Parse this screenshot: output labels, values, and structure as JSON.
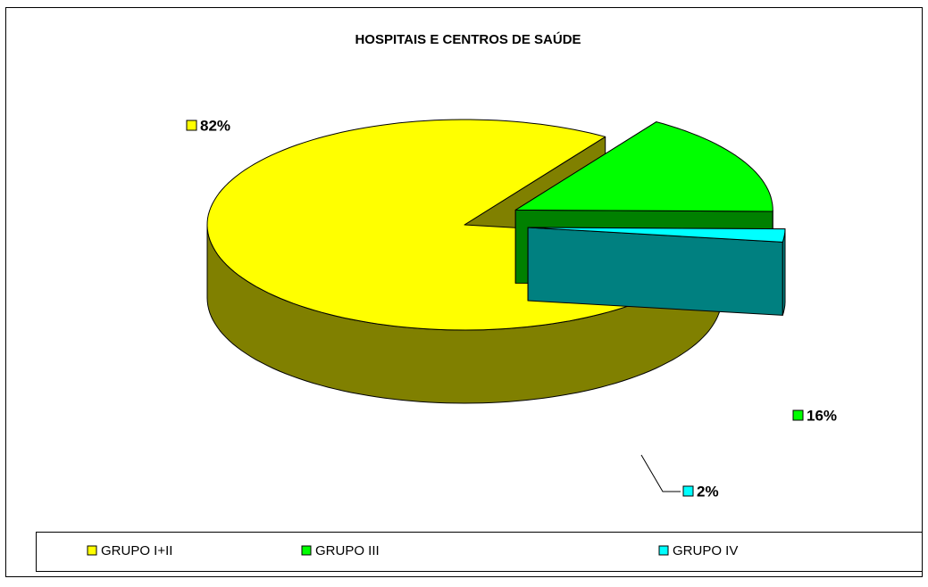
{
  "chart_data": {
    "type": "pie3d",
    "title": "HOSPITAIS E CENTROS DE SAÚDE",
    "categories": [
      "GRUPO I+II",
      "GRUPO III",
      "GRUPO IV"
    ],
    "values": [
      82,
      16,
      2
    ],
    "value_labels": [
      "82%",
      "16%",
      "2%"
    ],
    "colors": [
      "#ffff00",
      "#00ff00",
      "#00ffff"
    ],
    "side_colors": [
      "#808000",
      "#008000",
      "#008080"
    ],
    "legend": "bottom"
  }
}
